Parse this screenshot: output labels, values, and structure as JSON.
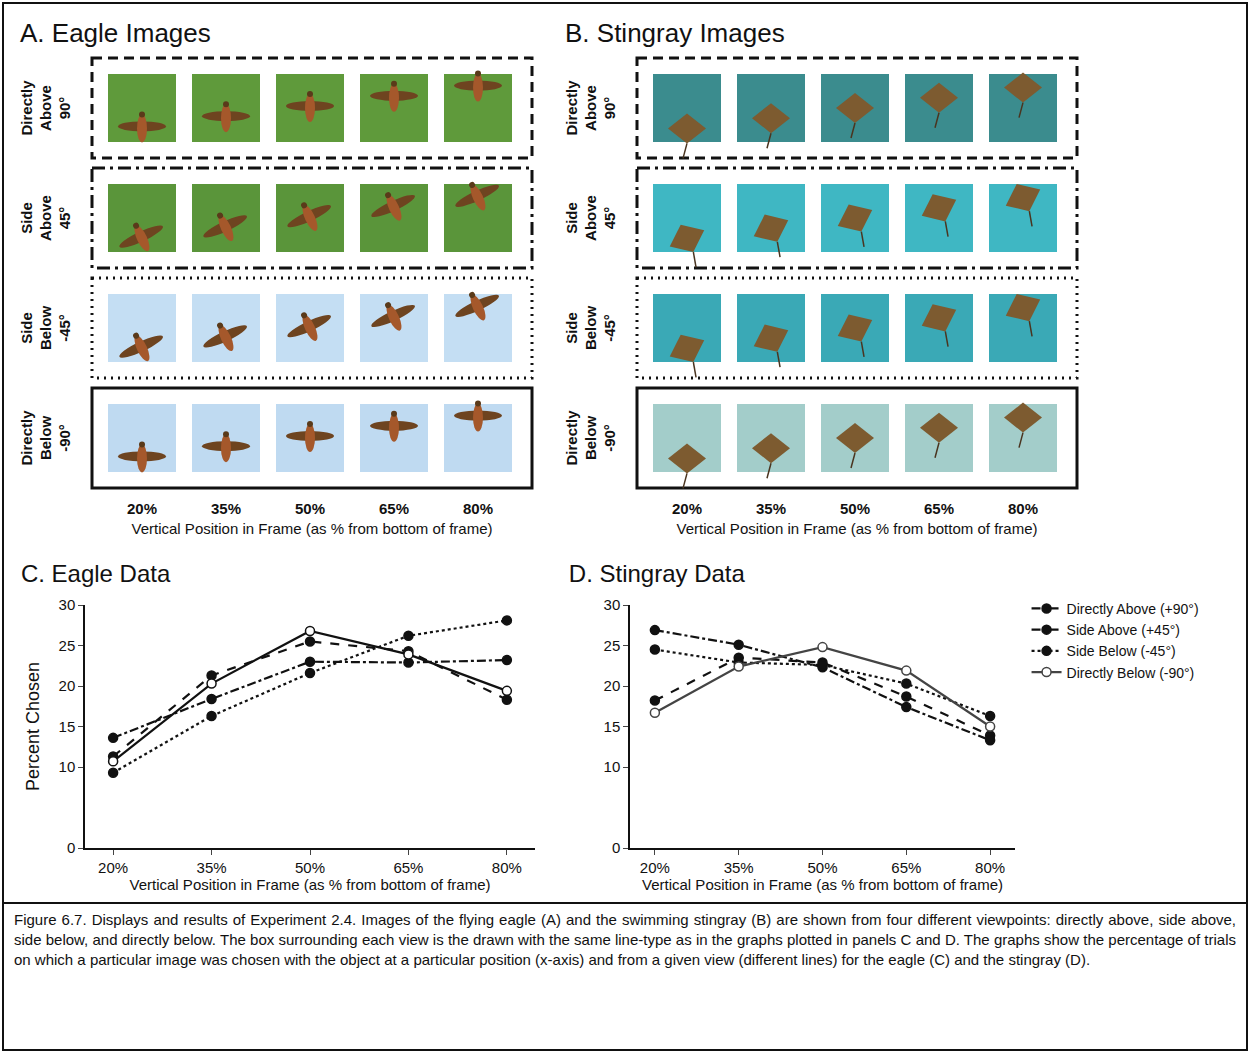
{
  "panels": [
    {
      "title": "A. Eagle Images",
      "animal": "eagle",
      "rows": [
        {
          "view": "Directly Above",
          "angle": "90°"
        },
        {
          "view": "Side Above",
          "angle": "45°"
        },
        {
          "view": "Side Below",
          "angle": "-45°"
        },
        {
          "view": "Directly Below",
          "angle": "-90°"
        }
      ],
      "positions": [
        "20%",
        "35%",
        "50%",
        "65%",
        "80%"
      ],
      "x_label": "Vertical Position in Frame (as % from bottom of frame)"
    },
    {
      "title": "B. Stingray Images",
      "animal": "stingray",
      "rows": [
        {
          "view": "Directly Above",
          "angle": "90°"
        },
        {
          "view": "Side Above",
          "angle": "45°"
        },
        {
          "view": "Side Below",
          "angle": "-45°"
        },
        {
          "view": "Directly Below",
          "angle": "-90°"
        }
      ],
      "positions": [
        "20%",
        "35%",
        "50%",
        "65%",
        "80%"
      ],
      "x_label": "Vertical Position in Frame (as % from bottom of frame)"
    }
  ],
  "chart_data": [
    {
      "type": "line",
      "title": "C. Eagle Data",
      "x_label": "Vertical Position in Frame (as % from bottom of frame)",
      "y_label": "Percent Chosen",
      "categories": [
        "20%",
        "35%",
        "50%",
        "65%",
        "80%"
      ],
      "ylim": [
        0,
        30
      ],
      "yticks": [
        0,
        10,
        15,
        20,
        25,
        30
      ],
      "grid": false,
      "series": [
        {
          "name": "Directly Above (+90°)",
          "color": "#111111",
          "line_style": "dash",
          "marker": "filled",
          "values": [
            11.3,
            21.3,
            25.5,
            24.3,
            18.3
          ]
        },
        {
          "name": "Side Above (+45°)",
          "color": "#111111",
          "line_style": "dashdot",
          "marker": "filled",
          "values": [
            13.6,
            18.4,
            23.0,
            22.9,
            23.2
          ]
        },
        {
          "name": "Side Below (-45°)",
          "color": "#111111",
          "line_style": "dot",
          "marker": "filled",
          "values": [
            9.3,
            16.3,
            21.6,
            26.2,
            28.1
          ]
        },
        {
          "name": "Directly Below (-90°)",
          "color": "#111111",
          "line_style": "solid",
          "marker": "open",
          "values": [
            10.7,
            20.3,
            26.8,
            23.9,
            19.4
          ]
        }
      ]
    },
    {
      "type": "line",
      "title": "D. Stingray Data",
      "x_label": "Vertical Position in Frame (as % from bottom of frame)",
      "categories": [
        "20%",
        "35%",
        "50%",
        "65%",
        "80%"
      ],
      "ylim": [
        0,
        30
      ],
      "yticks": [
        0,
        10,
        15,
        20,
        25,
        30
      ],
      "grid": false,
      "legend": "right",
      "series": [
        {
          "name": "Directly Above (+90°)",
          "color": "#111111",
          "line_style": "dash",
          "marker": "filled",
          "values": [
            18.2,
            23.5,
            22.9,
            18.7,
            13.9
          ]
        },
        {
          "name": "Side Above (+45°)",
          "color": "#111111",
          "line_style": "dashdot",
          "marker": "filled",
          "values": [
            26.9,
            25.1,
            22.3,
            17.4,
            13.3
          ]
        },
        {
          "name": "Side Below (-45°)",
          "color": "#111111",
          "line_style": "dot",
          "marker": "filled",
          "values": [
            24.5,
            22.9,
            22.6,
            20.3,
            16.3
          ]
        },
        {
          "name": "Directly Below (-90°)",
          "color": "#444444",
          "line_style": "solid",
          "marker": "open",
          "values": [
            16.7,
            22.4,
            24.8,
            21.9,
            15.0
          ]
        }
      ]
    }
  ],
  "caption": "Figure 6.7. Displays and results of Experiment 2.4. Images of the flying eagle (A) and the swimming stingray (B) are shown from four different viewpoints: directly above, side above, side below, and directly below. The box surrounding each view is the drawn with the same line-type as in the graphs plotted in panels C and D. The graphs show the percentage of trials on which a particular image was chosen with the object at a particular position (x-axis) and from a given view (different lines) for the eagle (C) and the stingray (D)."
}
